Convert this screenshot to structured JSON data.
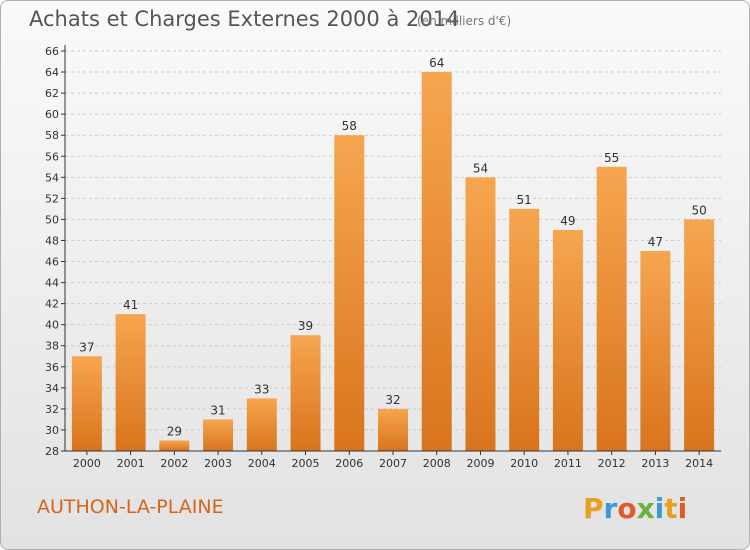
{
  "header": {
    "title": "Achats et Charges Externes 2000 à 2014",
    "unit": "(en milliers d'€)"
  },
  "footer": {
    "commune": "AUTHON-LA-PLAINE",
    "brand": "Proxiti"
  },
  "colors": {
    "bar_top": "#f6a64f",
    "bar_bottom": "#d9741d",
    "grid": "#cccccc",
    "axis": "#333333",
    "commune": "#d4661a"
  },
  "chart_data": {
    "type": "bar",
    "title": "Achats et Charges Externes 2000 à 2014",
    "subtitle": "(en milliers d'€)",
    "categories": [
      "2000",
      "2001",
      "2002",
      "2003",
      "2004",
      "2005",
      "2006",
      "2007",
      "2008",
      "2009",
      "2010",
      "2011",
      "2012",
      "2013",
      "2014"
    ],
    "values": [
      37,
      41,
      29,
      31,
      33,
      39,
      58,
      32,
      64,
      54,
      51,
      49,
      55,
      47,
      50
    ],
    "ylim": [
      28,
      66
    ],
    "yticks": [
      28,
      30,
      32,
      34,
      36,
      38,
      40,
      42,
      44,
      46,
      48,
      50,
      52,
      54,
      56,
      58,
      60,
      62,
      64,
      66
    ],
    "grid": "horizontal-dashed",
    "legend": "none",
    "data_labels": true
  }
}
